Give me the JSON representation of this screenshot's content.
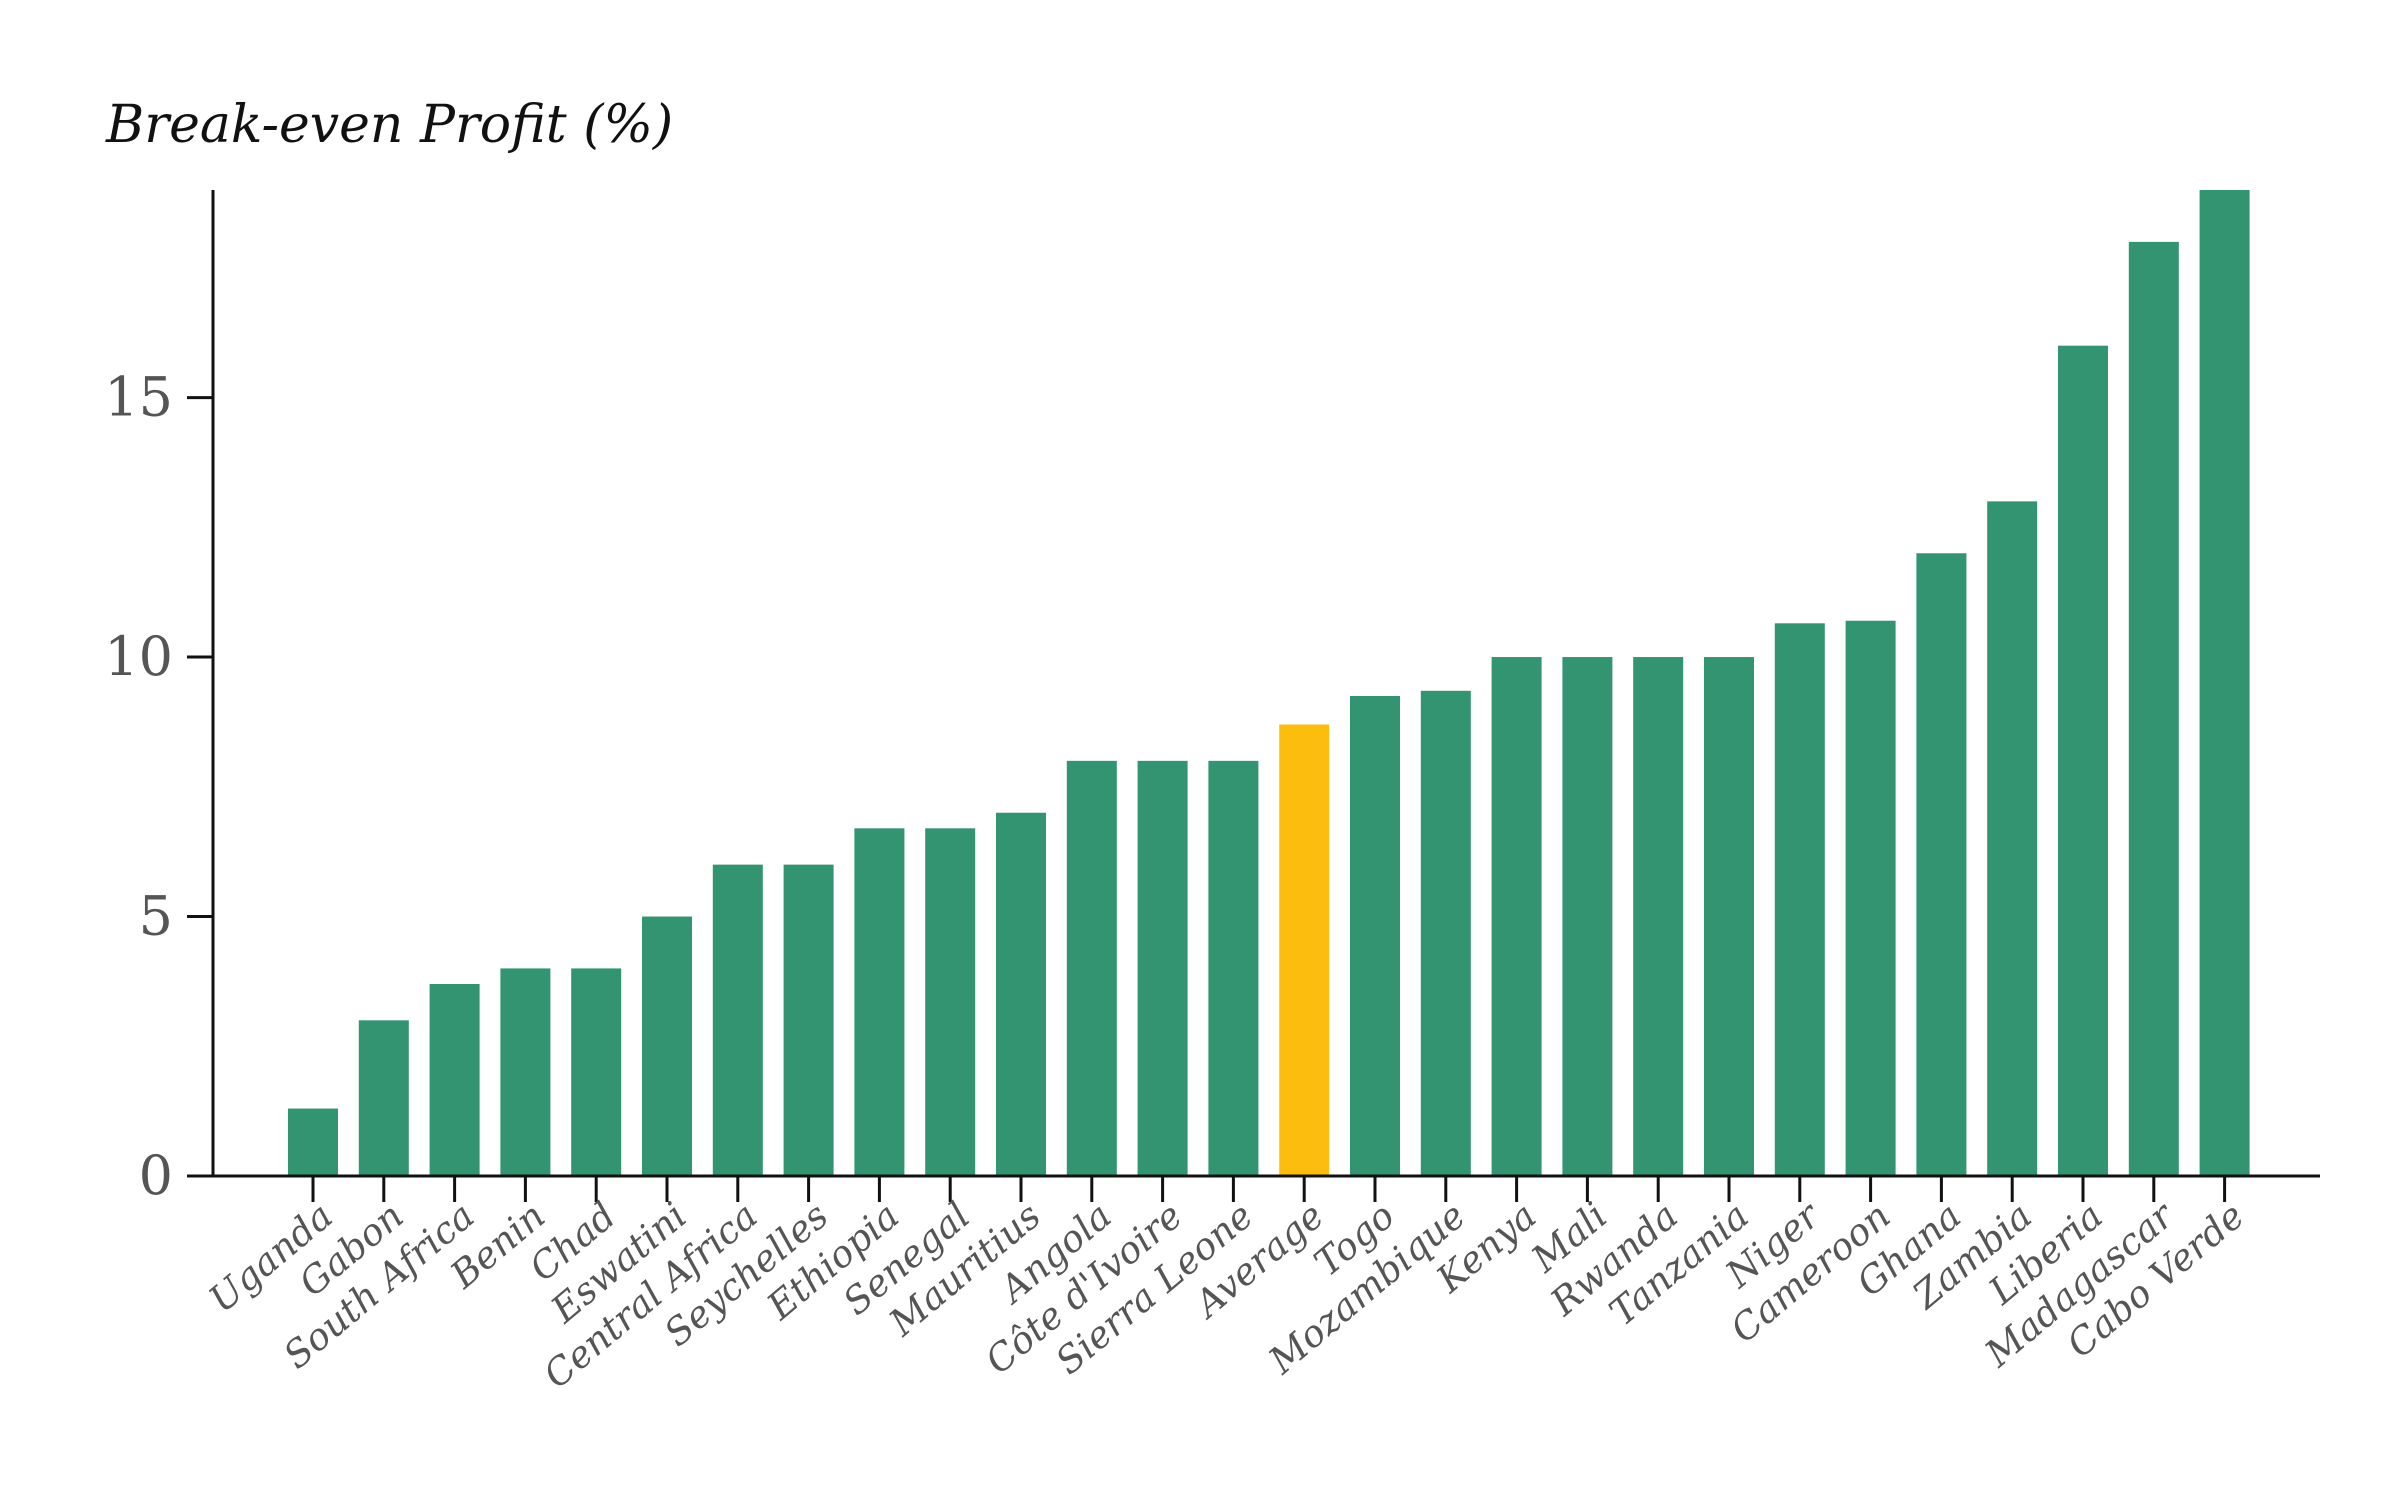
{
  "chart_data": {
    "type": "bar",
    "title": "",
    "xlabel": "",
    "ylabel": "Break-even Profit (%)",
    "ylim": [
      0,
      19
    ],
    "yticks": [
      "0",
      "5",
      "10",
      "15"
    ],
    "grid": false,
    "colors": {
      "bar": "#329470",
      "highlight": "#FDBD0F",
      "axis": "#111111"
    },
    "highlight_category": "Average",
    "categories": [
      "Uganda",
      "Gabon",
      "South Africa",
      "Benin",
      "Chad",
      "Eswatini",
      "Central Africa",
      "Seychelles",
      "Ethiopia",
      "Senegal",
      "Mauritius",
      "Angola",
      "Côte d'Ivoire",
      "Sierra Leone",
      "Average",
      "Togo",
      "Mozambique",
      "Kenya",
      "Mali",
      "Rwanda",
      "Tanzania",
      "Niger",
      "Cameroon",
      "Ghana",
      "Zambia",
      "Liberia",
      "Madagascar",
      "Cabo Verde"
    ],
    "values": [
      1.3,
      3.0,
      3.7,
      4.0,
      4.0,
      5.0,
      6.0,
      6.0,
      6.7,
      6.7,
      7.0,
      8.0,
      8.0,
      8.0,
      8.7,
      9.25,
      9.35,
      10.0,
      10.0,
      10.0,
      10.0,
      10.65,
      10.7,
      12.0,
      13.0,
      16.0,
      18.0,
      19.0
    ]
  }
}
